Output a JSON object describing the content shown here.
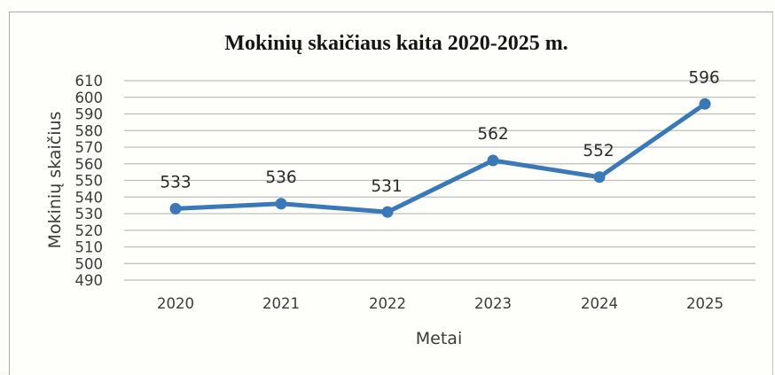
{
  "chart_data": {
    "type": "line",
    "title": "Mokinių skaičiaus kaita 2020-2025 m.",
    "xlabel": "Metai",
    "ylabel": "Mokinių skaičius",
    "categories": [
      "2020",
      "2021",
      "2022",
      "2023",
      "2024",
      "2025"
    ],
    "series": [
      {
        "values": [
          533,
          536,
          531,
          562,
          552,
          596
        ],
        "labels": [
          "533",
          "536",
          "531",
          "562",
          "552",
          "596"
        ],
        "color": "#3b78b8"
      }
    ],
    "ylim": [
      490,
      610
    ],
    "yticks": [
      "610",
      "600",
      "590",
      "580",
      "570",
      "560",
      "550",
      "540",
      "530",
      "520",
      "510",
      "500",
      "490"
    ],
    "grid": true,
    "legend": "none",
    "gridline_color": "#bdbdbd"
  }
}
